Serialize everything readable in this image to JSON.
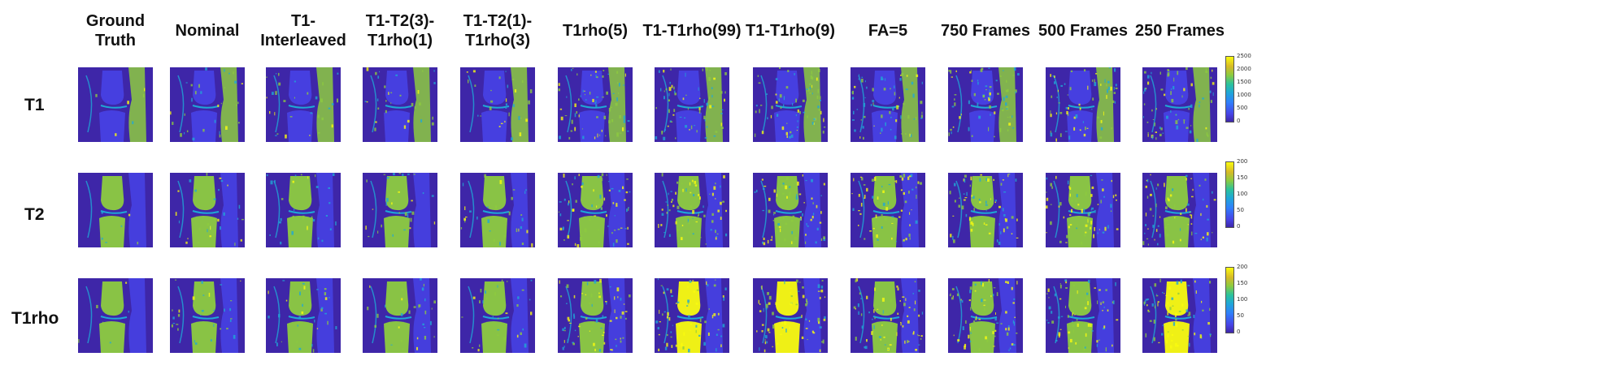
{
  "columns": [
    {
      "label": "Ground\nTruth"
    },
    {
      "label": "Nominal"
    },
    {
      "label": "T1-\nInterleaved"
    },
    {
      "label": "T1-T2(3)-\nT1rho(1)"
    },
    {
      "label": "T1-T2(1)-\nT1rho(3)"
    },
    {
      "label": "T1rho(5)"
    },
    {
      "label": "T1-T1rho(99)"
    },
    {
      "label": "T1-T1rho(9)"
    },
    {
      "label": "FA=5"
    },
    {
      "label": "750 Frames"
    },
    {
      "label": "500 Frames"
    },
    {
      "label": "250 Frames"
    }
  ],
  "rows": [
    {
      "label": "T1",
      "colorbar": {
        "ticks": [
          "2500",
          "2000",
          "1500",
          "1000",
          "500",
          "0"
        ]
      }
    },
    {
      "label": "T2",
      "colorbar": {
        "ticks": [
          "200",
          "150",
          "100",
          "50",
          "0"
        ]
      }
    },
    {
      "label": "T1rho",
      "colorbar": {
        "ticks": [
          "200",
          "150",
          "100",
          "50",
          "0"
        ]
      }
    }
  ],
  "colormap": {
    "name": "parula",
    "background": "#3e26a8",
    "low": "#4743e6",
    "mid": "#1fa7d6",
    "high": "#8dcb3f",
    "max": "#f9fb0e"
  }
}
